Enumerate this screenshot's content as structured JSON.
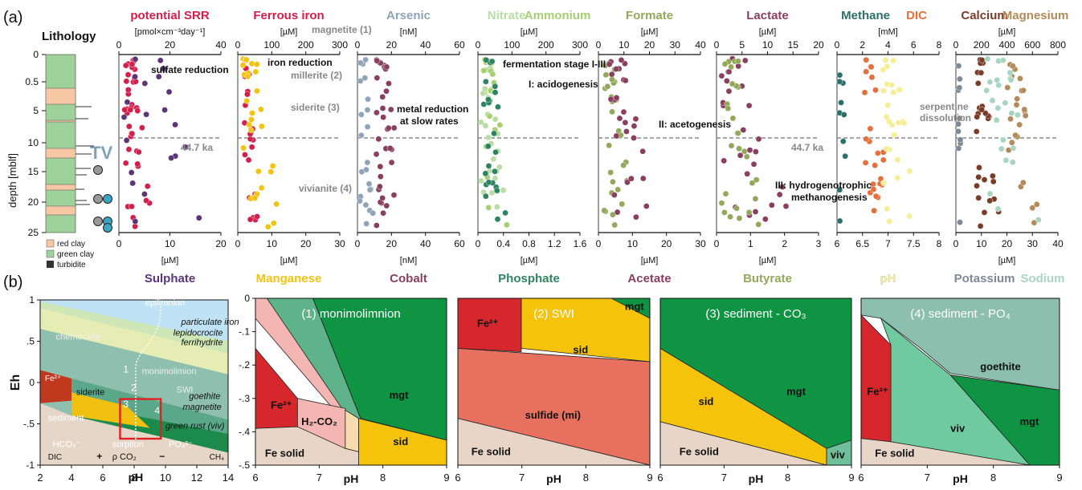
{
  "panel_labels": {
    "a": "(a)",
    "b": "(b)"
  },
  "lithology": {
    "title": "Lithology",
    "legend": [
      "red clay",
      "green clay",
      "turbidite"
    ],
    "tv": "TV",
    "colors": {
      "red": "#f7c7a3",
      "green": "#9fd19b",
      "turbidite": "#333333"
    },
    "depth_label": "depth [mblf]",
    "depth_ticks": [
      "0",
      "0.5",
      "5",
      "10",
      "15",
      "20",
      "25"
    ]
  },
  "colors": {
    "ssr": "#d21f4b",
    "sulphate": "#5b3578",
    "iron": "#d21f4b",
    "manganese": "#f2c40f",
    "arsenic": "#8fa3b9",
    "cobalt": "#8a3f5f",
    "nitrate": "#b8dea4",
    "ammonium": "#a6cf72",
    "phosphate": "#2e8460",
    "formate": "#93a85a",
    "acetate": "#8a3f5f",
    "lactate": "#8a3f5f",
    "butyrate": "#93a85a",
    "methane": "#2d6f6a",
    "dic": "#e4703c",
    "ph": "#f6ee95",
    "calcium": "#7a3c28",
    "magnesium": "#b38a5a",
    "potassium": "#7d8a96",
    "sodium": "#a8d5c0"
  },
  "chart_data": [
    {
      "type": "scatter",
      "top_titles": [
        "potential SRR"
      ],
      "top_unit": "[pmol×cm⁻³day⁻¹]",
      "top_ticks": [
        "0",
        "20",
        "40"
      ],
      "bottom_titles": [
        "Sulphate"
      ],
      "bottom_unit": "[µM]",
      "bottom_ticks": [
        "0",
        "10",
        "20"
      ],
      "annotations": [
        "sulfate reduction",
        "44.7 ka"
      ]
    },
    {
      "type": "scatter",
      "top_titles": [
        "Ferrous iron"
      ],
      "top_unit": "[µM]",
      "top_ticks": [
        "0",
        "100",
        "200",
        "300"
      ],
      "bottom_titles": [
        "Manganese"
      ],
      "bottom_unit": "[µM]",
      "bottom_ticks": [
        "0",
        "10",
        "20",
        "30"
      ],
      "annotations": [
        "magnetite (1)",
        "iron reduction",
        "millerite (2)",
        "siderite (3)",
        "vivianite (4)"
      ]
    },
    {
      "type": "scatter",
      "top_titles": [
        "Arsenic"
      ],
      "top_unit": "[nM]",
      "top_ticks": [
        "0",
        "20",
        "40",
        "60"
      ],
      "bottom_titles": [
        "Cobalt"
      ],
      "bottom_unit": "[nM]",
      "bottom_ticks": [
        "0",
        "20",
        "40",
        "60"
      ],
      "annotations": [
        "metal reduction",
        "at slow rates"
      ]
    },
    {
      "type": "scatter",
      "top_titles": [
        "Nitrate",
        "Ammonium"
      ],
      "top_unit": "[µM]",
      "top_ticks": [
        "0",
        "100",
        "200",
        "300"
      ],
      "bottom_titles": [
        "Phosphate"
      ],
      "bottom_unit": "[µM]",
      "bottom_ticks": [
        "0",
        "0.4",
        "0.8",
        "1.2",
        "1.6"
      ],
      "annotations": [
        "fermentation stage I-III",
        "I: acidogenesis"
      ]
    },
    {
      "type": "scatter",
      "top_titles": [
        "Formate"
      ],
      "top_unit": "[µM]",
      "top_ticks": [
        "0",
        "10",
        "20",
        "30",
        "40"
      ],
      "bottom_titles": [
        "Acetate"
      ],
      "bottom_unit": "[µM]",
      "bottom_ticks": [
        "0",
        "10",
        "20",
        "30"
      ],
      "annotations": [
        "II: acetogenesis"
      ]
    },
    {
      "type": "scatter",
      "top_titles": [
        "Lactate"
      ],
      "top_unit": "[µM]",
      "top_ticks": [
        "0",
        "5",
        "10",
        "15",
        "20"
      ],
      "bottom_titles": [
        "Butyrate"
      ],
      "bottom_unit": "[µM]",
      "bottom_ticks": [
        "0",
        "1",
        "2",
        "3"
      ],
      "annotations": [
        "44.7 ka",
        "III: hydrogenotrophic",
        "methanogenesis"
      ]
    },
    {
      "type": "scatter",
      "top_titles": [
        "Methane",
        "DIC"
      ],
      "top_unit": "[mM]",
      "top_ticks": [
        "0",
        "2",
        "4",
        "6",
        "8"
      ],
      "bottom_titles": [
        "pH"
      ],
      "bottom_unit": "",
      "bottom_ticks": [
        "6",
        "6.5",
        "7",
        "7.5",
        "8"
      ],
      "annotations": []
    },
    {
      "type": "scatter",
      "top_titles": [
        "Calcium",
        "Magnesium"
      ],
      "top_unit": "[µM]",
      "top_ticks": [
        "0",
        "200",
        "400",
        "600",
        "800"
      ],
      "bottom_titles": [
        "Potassium",
        "Sodium"
      ],
      "bottom_unit": "[µM]",
      "bottom_ticks": [
        "0",
        "10",
        "20",
        "30",
        "40"
      ],
      "annotations": [
        "serpentine",
        "dissolution"
      ]
    }
  ],
  "eh_ph": {
    "eh_label": "Eh",
    "ph_label": "pH",
    "overview": {
      "y_ticks": [
        "1",
        ".5",
        "0",
        "-.5",
        "-1"
      ],
      "x_ticks": [
        "2",
        "4",
        "6",
        "8",
        "10",
        "12",
        "14"
      ],
      "labels": [
        "epilimnion",
        "particulate iron",
        "chemocline",
        "lepidocrocite",
        "ferrihydrite",
        "monimolimion",
        "SWI",
        "goethite",
        "magnetite",
        "siderite",
        "sediment",
        "green rust (viv)",
        "sorption",
        "DIC",
        "CH₄"
      ],
      "fe_label": "Fe²⁺",
      "hco3": "HCO₃⁻",
      "po4": "PO₄³⁻",
      "pco2": "ρ CO₂",
      "plus": "+",
      "minus": "−",
      "numbers": [
        "1",
        "2",
        "3",
        "4"
      ]
    },
    "panels": [
      {
        "title": "(1) monimolimnion",
        "labels": [
          "Fe²⁺",
          "H₂-CO₂",
          "mgt",
          "sid",
          "Fe solid"
        ]
      },
      {
        "title": "(2) SWI",
        "labels": [
          "Fe²⁺",
          "sid",
          "mgt",
          "sulfide (mi)",
          "Fe solid"
        ]
      },
      {
        "title": "(3) sediment - CO₃",
        "labels": [
          "sid",
          "mgt",
          "Fe solid",
          "viv"
        ]
      },
      {
        "title": "(4) sediment - PO₄",
        "labels": [
          "Fe²⁺",
          "goethite",
          "viv",
          "mgt",
          "Fe solid"
        ]
      }
    ],
    "y_ticks": [
      "0",
      "-.1",
      "-.2",
      "-.3",
      "-.4",
      "-.5"
    ],
    "x_ticks": [
      "6",
      "7",
      "8",
      "9"
    ]
  }
}
